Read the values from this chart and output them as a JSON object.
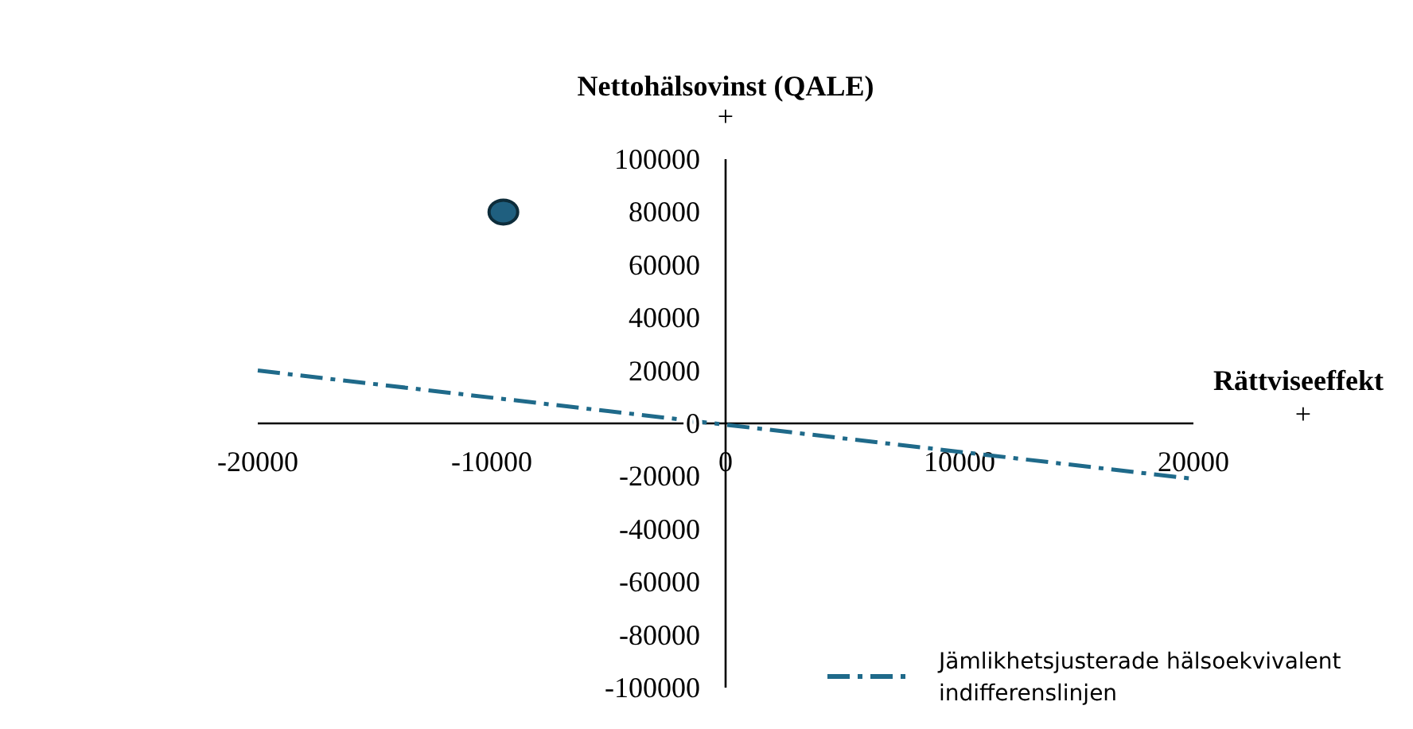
{
  "chart_data": {
    "type": "scatter",
    "xlabel": "Rättviseeffekt",
    "ylabel": "Nettohälsovinst (QALE)",
    "annotations": [
      "+",
      "+"
    ],
    "xlim": [
      -20000,
      20000
    ],
    "ylim": [
      -100000,
      100000
    ],
    "xticks": [
      -20000,
      -10000,
      0,
      10000,
      20000
    ],
    "yticks": [
      -100000,
      -80000,
      -60000,
      -40000,
      -20000,
      0,
      20000,
      40000,
      60000,
      80000,
      100000
    ],
    "grid": false,
    "legend": "bottom right",
    "series": [
      {
        "color": "#1f5f7f",
        "x": [
          -9500
        ],
        "values": [
          80000
        ],
        "marker": "circle"
      },
      {
        "type": "line",
        "name": "Jämlikhetsjusterade hälsoekvivalent indifferenslinjen",
        "color": "#1f6a8a",
        "x": [
          -20000,
          20000
        ],
        "values": [
          20000,
          -21000
        ],
        "line_style": "dashed",
        "marker": "none"
      }
    ]
  }
}
